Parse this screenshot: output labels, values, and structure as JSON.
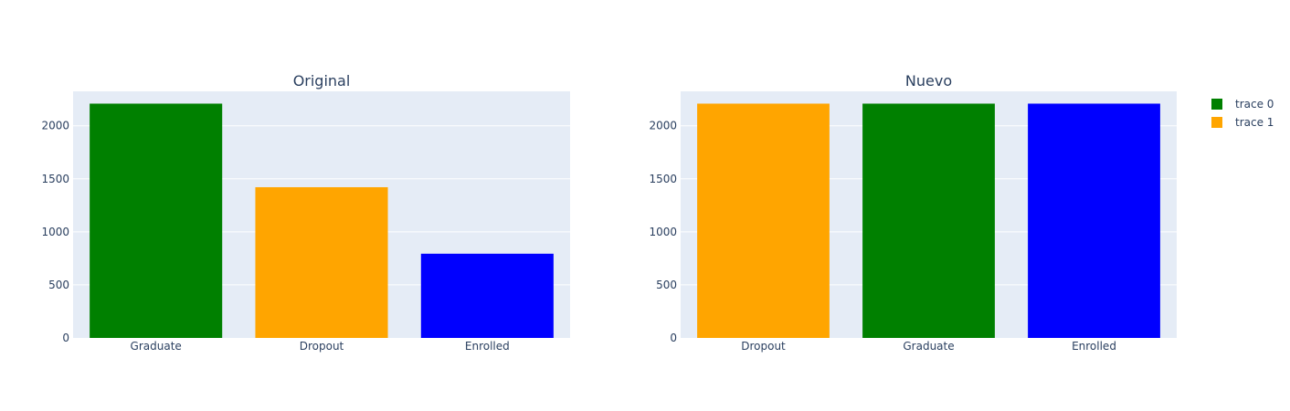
{
  "chart_data": [
    {
      "type": "bar",
      "title": "Original",
      "categories": [
        "Graduate",
        "Dropout",
        "Enrolled"
      ],
      "values": [
        2209,
        1421,
        794
      ],
      "colors": [
        "#008000",
        "#ffa500",
        "#0000ff"
      ],
      "ylim": [
        0,
        2325
      ],
      "yticks": [
        0,
        500,
        1000,
        1500,
        2000
      ],
      "grid": true
    },
    {
      "type": "bar",
      "title": "Nuevo",
      "categories": [
        "Dropout",
        "Graduate",
        "Enrolled"
      ],
      "values": [
        2209,
        2209,
        2209
      ],
      "colors": [
        "#ffa500",
        "#008000",
        "#0000ff"
      ],
      "ylim": [
        0,
        2325
      ],
      "yticks": [
        0,
        500,
        1000,
        1500,
        2000
      ],
      "grid": true
    }
  ],
  "legend": {
    "placement": "top-right",
    "items": [
      {
        "name": "trace 0",
        "color": "#008000"
      },
      {
        "name": "trace 1",
        "color": "#ffa500"
      }
    ]
  },
  "colors": {
    "plot_background": "#e5ecf6",
    "grid": "#ffffff",
    "text": "#2a3f5f"
  }
}
